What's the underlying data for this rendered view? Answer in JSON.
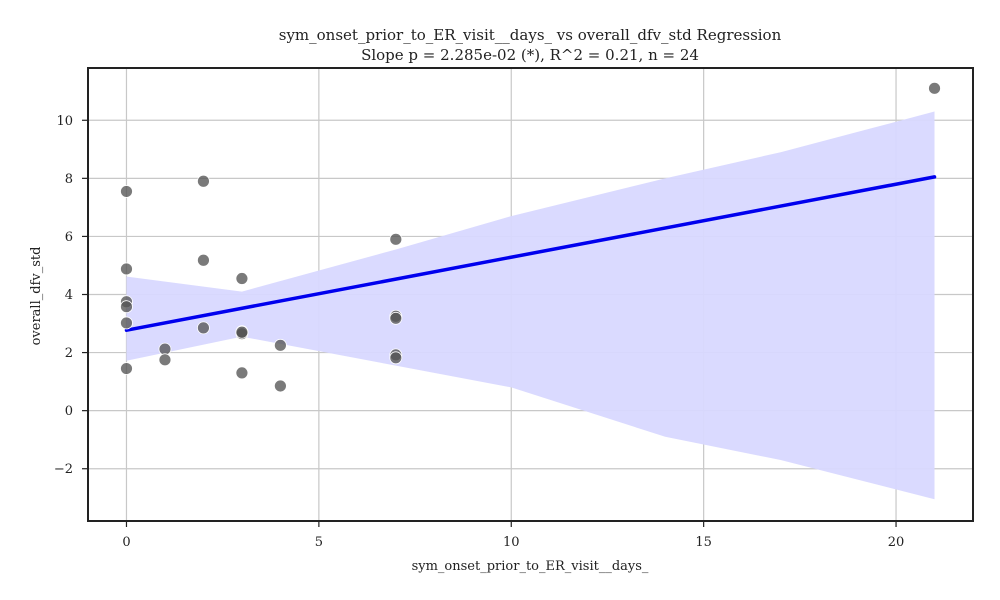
{
  "chart_data": {
    "type": "scatter",
    "title": "sym_onset_prior_to_ER_visit__days_ vs overall_dfv_std Regression",
    "subtitle": "Slope p = 2.285e-02 (*), R^2 = 0.21, n = 24",
    "xlabel": "sym_onset_prior_to_ER_visit__days_",
    "ylabel": "overall_dfv_std",
    "xlim": [
      -1,
      22
    ],
    "ylim": [
      -3.8,
      11.8
    ],
    "xticks": [
      0,
      5,
      10,
      15,
      20
    ],
    "xtick_labels": [
      "0",
      "5",
      "10",
      "15",
      "20"
    ],
    "yticks": [
      -2,
      0,
      2,
      4,
      6,
      8,
      10
    ],
    "ytick_labels": [
      "−2",
      "0",
      "2",
      "4",
      "6",
      "8",
      "10"
    ],
    "grid": true,
    "points": [
      {
        "x": 0,
        "y": 7.55
      },
      {
        "x": 0,
        "y": 4.88
      },
      {
        "x": 0,
        "y": 3.75
      },
      {
        "x": 0,
        "y": 3.58
      },
      {
        "x": 0,
        "y": 3.02
      },
      {
        "x": 0,
        "y": 1.45
      },
      {
        "x": 1,
        "y": 2.12
      },
      {
        "x": 1,
        "y": 1.75
      },
      {
        "x": 2,
        "y": 7.9
      },
      {
        "x": 2,
        "y": 5.18
      },
      {
        "x": 2,
        "y": 2.85
      },
      {
        "x": 3,
        "y": 4.55
      },
      {
        "x": 3,
        "y": 2.72
      },
      {
        "x": 3,
        "y": 2.65
      },
      {
        "x": 3,
        "y": 1.3
      },
      {
        "x": 4,
        "y": 2.25
      },
      {
        "x": 4,
        "y": 0.85
      },
      {
        "x": 7,
        "y": 5.9
      },
      {
        "x": 7,
        "y": 3.25
      },
      {
        "x": 7,
        "y": 3.18
      },
      {
        "x": 7,
        "y": 1.92
      },
      {
        "x": 7,
        "y": 1.82
      },
      {
        "x": 21,
        "y": 11.1
      },
      {
        "x": 3,
        "y": 2.7
      }
    ],
    "regression": {
      "x_start": 0,
      "y_start": 2.77,
      "x_end": 21,
      "y_end": 8.05
    },
    "confidence_band": {
      "x": [
        0,
        3,
        7,
        10,
        14,
        17,
        21
      ],
      "lower": [
        1.72,
        2.55,
        1.55,
        0.8,
        -0.9,
        -1.7,
        -3.05
      ],
      "upper": [
        4.62,
        4.1,
        5.55,
        6.7,
        8.0,
        8.9,
        10.3
      ]
    },
    "colors": {
      "points": "#555555",
      "regression_line": "#0000ee",
      "band": "#d8d8ff",
      "grid": "#c8c8c8",
      "axes": "#222222"
    }
  }
}
